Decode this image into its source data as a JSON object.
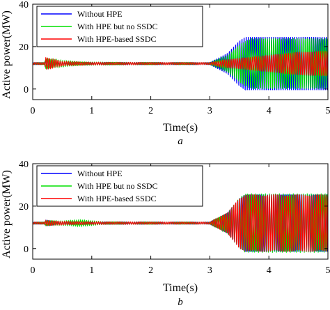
{
  "chart_data": [
    {
      "type": "line",
      "caption": "a",
      "xlabel": "Time(s)",
      "ylabel": "Active power(MW)",
      "xlim": [
        0,
        5
      ],
      "ylim": [
        -5,
        40
      ],
      "xticks": [
        "0",
        "1",
        "2",
        "3",
        "4",
        "5"
      ],
      "yticks": [
        "0",
        "20",
        "40"
      ],
      "grid": false,
      "legend_position": "top-left",
      "series": [
        {
          "name": "Without HPE",
          "color": "#0000ff",
          "mean": 12,
          "envelope": {
            "t": [
              0,
              0.2,
              0.22,
              0.4,
              3.0,
              3.3,
              3.5,
              3.6,
              5.0
            ],
            "half_amplitude": [
              0.5,
              0.5,
              1.0,
              0.5,
              0.5,
              5,
              11,
              13,
              13
            ]
          }
        },
        {
          "name": "With HPE but no SSDC",
          "color": "#00e000",
          "mean": 12,
          "envelope": {
            "t": [
              0,
              0.2,
              0.22,
              0.5,
              0.8,
              1.5,
              3.0,
              3.3,
              3.55,
              3.7,
              5.0
            ],
            "half_amplitude": [
              0.5,
              0.5,
              2.5,
              1.5,
              0.8,
              0.6,
              0.5,
              4,
              10,
              12,
              12
            ]
          }
        },
        {
          "name": "With HPE-based SSDC",
          "color": "#ff0000",
          "mean": 12,
          "envelope": {
            "t": [
              0,
              0.2,
              0.22,
              0.5,
              1.0,
              3.0,
              3.3,
              4.0,
              4.5,
              5.0
            ],
            "half_amplitude": [
              0.5,
              0.5,
              3,
              1,
              0.6,
              0.5,
              2,
              4,
              5.5,
              6
            ]
          }
        }
      ]
    },
    {
      "type": "line",
      "caption": "b",
      "xlabel": "Time(s)",
      "ylabel": "Active power(MW)",
      "xlim": [
        0,
        5
      ],
      "ylim": [
        -5,
        40
      ],
      "xticks": [
        "0",
        "1",
        "2",
        "3",
        "4",
        "5"
      ],
      "yticks": [
        "0",
        "20",
        "40"
      ],
      "grid": false,
      "legend_position": "top-left",
      "series": [
        {
          "name": "Without HPE",
          "color": "#0000ff",
          "mean": 12,
          "envelope": {
            "t": [
              0,
              0.2,
              0.22,
              0.4,
              3.0,
              3.3,
              3.5,
              3.6,
              5.0
            ],
            "half_amplitude": [
              0.5,
              0.5,
              1.5,
              0.6,
              0.5,
              5,
              12,
              14,
              14
            ]
          }
        },
        {
          "name": "With HPE but no SSDC",
          "color": "#00e000",
          "mean": 12,
          "envelope": {
            "t": [
              0,
              0.2,
              0.22,
              0.5,
              0.8,
              1.2,
              3.0,
              3.3,
              3.5,
              3.6,
              5.0
            ],
            "half_amplitude": [
              0.5,
              0.5,
              1.2,
              1.0,
              1.6,
              0.6,
              0.5,
              5,
              12,
              14,
              14
            ]
          }
        },
        {
          "name": "With HPE-based SSDC",
          "color": "#ff0000",
          "mean": 12,
          "envelope": {
            "t": [
              0,
              0.2,
              0.22,
              0.5,
              1.0,
              3.0,
              3.3,
              3.5,
              3.6,
              5.0
            ],
            "half_amplitude": [
              0.5,
              0.5,
              1.2,
              0.8,
              0.6,
              0.5,
              5,
              12,
              13.5,
              13.5
            ]
          }
        }
      ]
    }
  ]
}
